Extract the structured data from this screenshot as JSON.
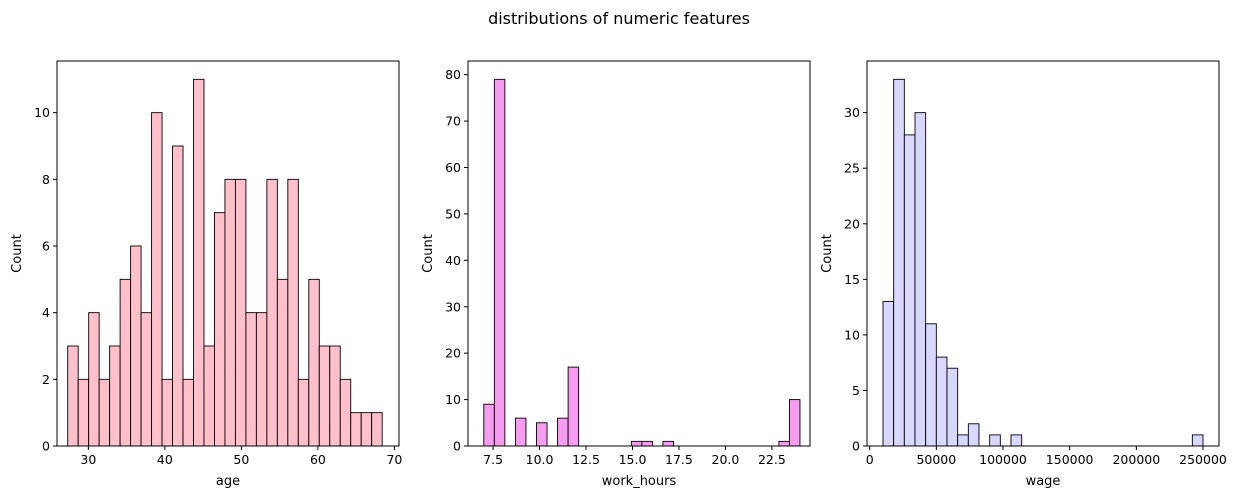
{
  "figure": {
    "title": "distributions of numeric features"
  },
  "chart_data": [
    {
      "type": "bar",
      "xlabel": "age",
      "ylabel": "Count",
      "color": "#ffc0cb",
      "xlim": [
        25.9,
        70.6
      ],
      "ylim": [
        0,
        11.55
      ],
      "xticks": [
        30,
        40,
        50,
        60,
        70
      ],
      "xtick_labels": [
        "30",
        "40",
        "50",
        "60",
        "70"
      ],
      "yticks": [
        0,
        2,
        4,
        6,
        8,
        10
      ],
      "ytick_labels": [
        "0",
        "2",
        "4",
        "6",
        "8",
        "10"
      ],
      "bin_start": 27.3,
      "bin_width": 1.37,
      "counts": [
        3,
        2,
        4,
        2,
        3,
        5,
        6,
        4,
        10,
        2,
        9,
        2,
        11,
        3,
        7,
        8,
        8,
        4,
        4,
        8,
        5,
        8,
        2,
        5,
        3,
        3,
        2,
        1,
        1,
        1
      ]
    },
    {
      "type": "bar",
      "xlabel": "work_hours",
      "ylabel": "Count",
      "color": "#f59cf0",
      "xlim": [
        6.15,
        24.55
      ],
      "ylim": [
        0,
        82.95
      ],
      "xticks": [
        7.5,
        10.0,
        12.5,
        15.0,
        17.5,
        20.0,
        22.5
      ],
      "xtick_labels": [
        "7.5",
        "10.0",
        "12.5",
        "15.0",
        "17.5",
        "20.0",
        "22.5"
      ],
      "yticks": [
        0,
        10,
        20,
        30,
        40,
        50,
        60,
        70,
        80
      ],
      "ytick_labels": [
        "0",
        "10",
        "20",
        "30",
        "40",
        "50",
        "60",
        "70",
        "80"
      ],
      "bin_start": 7.0,
      "bin_width": 0.567,
      "counts": [
        9,
        79,
        0,
        6,
        0,
        5,
        0,
        6,
        17,
        0,
        0,
        0,
        0,
        0,
        1,
        1,
        0,
        1,
        0,
        0,
        0,
        0,
        0,
        0,
        0,
        0,
        0,
        0,
        1,
        10
      ]
    },
    {
      "type": "bar",
      "xlabel": "wage",
      "ylabel": "Count",
      "color": "#d8d8ff",
      "xlim": [
        -2000,
        262000
      ],
      "ylim": [
        0,
        34.65
      ],
      "xticks": [
        0,
        50000,
        100000,
        150000,
        200000,
        250000
      ],
      "xtick_labels": [
        "0",
        "50000",
        "100000",
        "150000",
        "200000",
        "250000"
      ],
      "yticks": [
        0,
        5,
        10,
        15,
        20,
        25,
        30
      ],
      "ytick_labels": [
        "0",
        "5",
        "10",
        "15",
        "20",
        "25",
        "30"
      ],
      "bin_start": 10000,
      "bin_width": 8000,
      "counts": [
        13,
        33,
        28,
        30,
        11,
        8,
        7,
        1,
        2,
        0,
        1,
        0,
        1,
        0,
        0,
        0,
        0,
        0,
        0,
        0,
        0,
        0,
        0,
        0,
        0,
        0,
        0,
        0,
        0,
        1
      ]
    }
  ]
}
